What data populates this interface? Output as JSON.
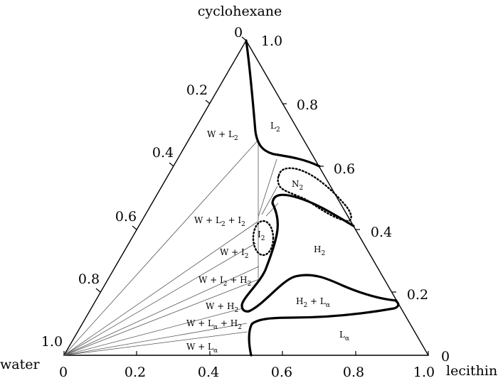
{
  "vertices": {
    "top": "cyclohexane",
    "left": "water",
    "right": "lecithin"
  },
  "ticks": {
    "bottom": [
      "0",
      "0.2",
      "0.4",
      "0.6",
      "0.8",
      "1.0"
    ],
    "left": [
      "0",
      "0.2",
      "0.4",
      "0.6",
      "0.8",
      "1.0"
    ],
    "right": [
      "1.0",
      "0.8",
      "0.6",
      "0.4",
      "0.2",
      "0"
    ]
  },
  "regions": {
    "L2": {
      "base": "L",
      "sub": "2"
    },
    "N2": {
      "base": "N",
      "sub": "2"
    },
    "H2": {
      "base": "H",
      "sub": "2"
    },
    "I2": {
      "base": "I",
      "sub": "2"
    },
    "La": {
      "base": "L",
      "sub": "α"
    },
    "H2La": {
      "a": "H",
      "a_sub": "2",
      "plus": " + ",
      "b": "L",
      "b_sub": "α"
    },
    "WL2": {
      "a": "W + L",
      "a_sub": "2"
    },
    "WL2I2": {
      "a": "W + L",
      "a_sub": "2",
      "b": " + I",
      "b_sub": "2"
    },
    "WI2": {
      "a": "W + I",
      "a_sub": "2"
    },
    "WI2H2": {
      "a": "W + I",
      "a_sub": "2",
      "b": " + H",
      "b_sub": "2"
    },
    "WH2": {
      "a": "W + H",
      "a_sub": "2"
    },
    "WLaH2": {
      "a": "W + L",
      "a_sub": "α",
      "b": " + H",
      "b_sub": "2"
    },
    "WLa": {
      "a": "W + L",
      "a_sub": "α"
    }
  }
}
